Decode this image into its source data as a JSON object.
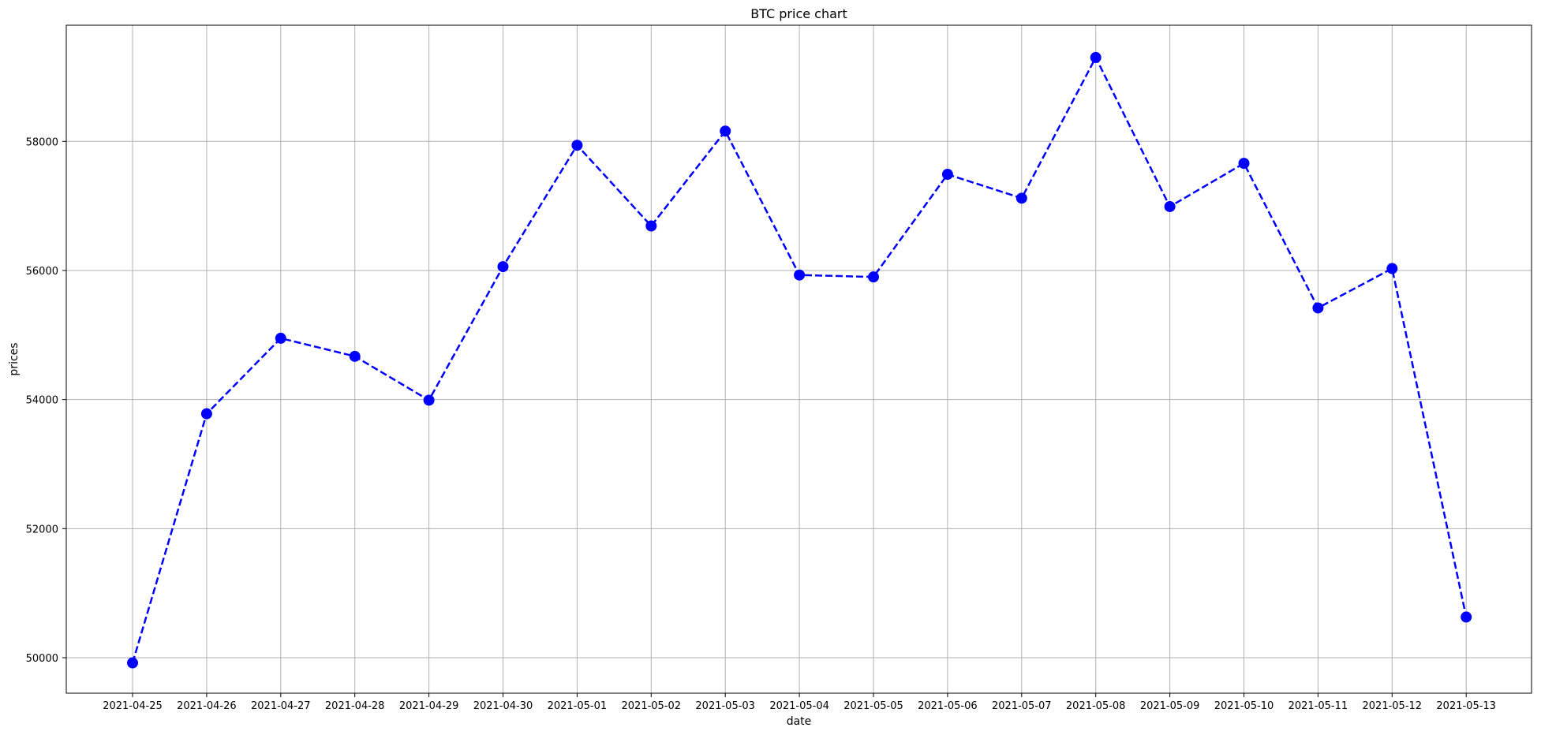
{
  "chart_data": {
    "type": "line",
    "title": "BTC price chart",
    "xlabel": "date",
    "ylabel": "prices",
    "categories": [
      "2021-04-25",
      "2021-04-26",
      "2021-04-27",
      "2021-04-28",
      "2021-04-29",
      "2021-04-30",
      "2021-05-01",
      "2021-05-02",
      "2021-05-03",
      "2021-05-04",
      "2021-05-05",
      "2021-05-06",
      "2021-05-07",
      "2021-05-08",
      "2021-05-09",
      "2021-05-10",
      "2021-05-11",
      "2021-05-12",
      "2021-05-13"
    ],
    "series": [
      {
        "values": [
          49920,
          53780,
          54950,
          54670,
          53990,
          56060,
          57940,
          56690,
          58160,
          55930,
          55900,
          57490,
          57120,
          59300,
          56990,
          57660,
          55420,
          56030,
          50630
        ],
        "color": "#0000ff",
        "line_style": "dashed",
        "marker": "circle"
      }
    ],
    "ylim": [
      49450,
      59800
    ],
    "yticks": [
      50000,
      52000,
      54000,
      56000,
      58000
    ],
    "grid": true,
    "legend": "none"
  }
}
